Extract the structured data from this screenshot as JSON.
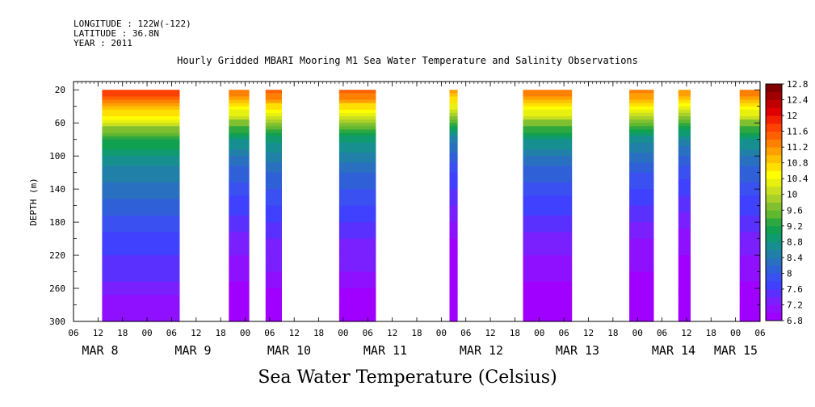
{
  "header": {
    "longitude": "LONGITUDE : 122W(-122)",
    "latitude": "LATITUDE : 36.8N",
    "year": "YEAR : 2011"
  },
  "chart_data": {
    "type": "heatmap",
    "title": "Hourly Gridded MBARI Mooring M1 Sea Water Temperature and Salinity Observations",
    "bottom_title": "Sea Water Temperature (Celsius)",
    "ylabel": "DEPTH (m)",
    "xlabel": "",
    "ylim": [
      300,
      10
    ],
    "y_ticks": [
      "20",
      "60",
      "100",
      "140",
      "180",
      "220",
      "260",
      "300"
    ],
    "x_hour_ticks": [
      "06",
      "12",
      "18",
      "00",
      "06",
      "12",
      "18",
      "00",
      "06",
      "12",
      "18",
      "00",
      "06",
      "12",
      "18",
      "00",
      "06",
      "12",
      "18",
      "00",
      "06",
      "12",
      "18",
      "00",
      "06",
      "12",
      "18",
      "00",
      "06"
    ],
    "x_date_labels": [
      "MAR  8",
      "MAR  9",
      "MAR 10",
      "MAR 11",
      "MAR 12",
      "MAR 13",
      "MAR 14",
      "MAR 15"
    ],
    "x_range_hours": [
      "2011-03-08T06:00",
      "2011-03-15T06:00"
    ],
    "data_blocks": [
      {
        "start": "2011-03-08T13:00",
        "end": "2011-03-09T08:00",
        "surface_temp": 11.8
      },
      {
        "start": "2011-03-09T20:00",
        "end": "2011-03-10T01:00",
        "surface_temp": 11.4
      },
      {
        "start": "2011-03-10T05:00",
        "end": "2011-03-10T09:00",
        "surface_temp": 11.5
      },
      {
        "start": "2011-03-10T23:00",
        "end": "2011-03-11T08:00",
        "surface_temp": 11.5
      },
      {
        "start": "2011-03-12T02:00",
        "end": "2011-03-12T04:00",
        "surface_temp": 11.1
      },
      {
        "start": "2011-03-12T20:00",
        "end": "2011-03-13T08:00",
        "surface_temp": 11.4
      },
      {
        "start": "2011-03-13T22:00",
        "end": "2011-03-14T04:00",
        "surface_temp": 11.3
      },
      {
        "start": "2011-03-14T10:00",
        "end": "2011-03-14T13:00",
        "surface_temp": 11.2
      },
      {
        "start": "2011-03-15T01:00",
        "end": "2011-03-15T06:00",
        "surface_temp": 11.4
      }
    ],
    "profile": {
      "depths": [
        20,
        30,
        40,
        50,
        60,
        70,
        80,
        100,
        120,
        140,
        160,
        180,
        200,
        220,
        240,
        260,
        280,
        300
      ],
      "temps": [
        11.8,
        11.5,
        11.0,
        10.6,
        10.1,
        9.6,
        9.2,
        8.8,
        8.5,
        8.3,
        8.1,
        7.9,
        7.7,
        7.6,
        7.5,
        7.3,
        7.1,
        7.0
      ]
    },
    "colorbar": {
      "labels": [
        "12.8",
        "12.4",
        "12",
        "11.6",
        "11.2",
        "10.8",
        "10.4",
        "10",
        "9.6",
        "9.2",
        "8.8",
        "8.4",
        "8",
        "7.6",
        "7.2",
        "6.8"
      ],
      "levels": [
        6.8,
        7.0,
        7.2,
        7.4,
        7.6,
        7.8,
        8.0,
        8.2,
        8.4,
        8.6,
        8.8,
        9.0,
        9.2,
        9.4,
        9.6,
        9.8,
        10.0,
        10.2,
        10.4,
        10.6,
        10.8,
        11.0,
        11.2,
        11.4,
        11.6,
        11.8,
        12.0,
        12.2,
        12.4,
        12.6,
        12.8
      ],
      "colors": [
        "#a000ff",
        "#8f10ff",
        "#7a20ff",
        "#5a30ff",
        "#4040ff",
        "#3a50f0",
        "#3060d8",
        "#2a70c0",
        "#2080a8",
        "#178f90",
        "#109a70",
        "#10a050",
        "#30a840",
        "#60b830",
        "#80c030",
        "#a8d028",
        "#c8e020",
        "#e8f010",
        "#ffff00",
        "#ffe000",
        "#ffc000",
        "#ffa000",
        "#ff8000",
        "#ff6000",
        "#ff4000",
        "#f02000",
        "#e00000",
        "#c00000",
        "#a00000",
        "#800000"
      ]
    }
  }
}
